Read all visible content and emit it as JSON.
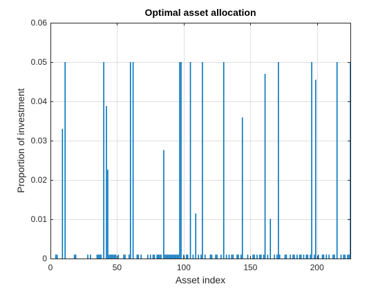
{
  "chart_data": {
    "type": "bar",
    "title": "Optimal asset allocation",
    "xlabel": "Asset index",
    "ylabel": "Proportion of investment",
    "xlim": [
      0,
      225
    ],
    "ylim": [
      0,
      0.06
    ],
    "xticks": [
      0,
      50,
      100,
      150,
      200
    ],
    "xtick_labels": [
      "0",
      "50",
      "100",
      "150",
      "200"
    ],
    "yticks": [
      0,
      0.01,
      0.02,
      0.03,
      0.04,
      0.05,
      0.06
    ],
    "ytick_labels": [
      "0",
      "0.01",
      "0.02",
      "0.03",
      "0.04",
      "0.05",
      "0.06"
    ],
    "grid": true,
    "bar_color": "#0072BD",
    "axis_color": "#262626",
    "grid_color": "#DFDFDF",
    "x": [
      4,
      5,
      9,
      11,
      18,
      19,
      28,
      30,
      35,
      36,
      37,
      38,
      40,
      42,
      43,
      44,
      45,
      46,
      47,
      48,
      49,
      51,
      55,
      56,
      59,
      60,
      62,
      65,
      66,
      68,
      73,
      75,
      77,
      78,
      80,
      81,
      82,
      83,
      85,
      86,
      87,
      88,
      89,
      90,
      91,
      92,
      93,
      94,
      95,
      96,
      97,
      98,
      100,
      102,
      103,
      105,
      107,
      109,
      111,
      113,
      114,
      116,
      120,
      121,
      124,
      125,
      128,
      130,
      132,
      134,
      136,
      137,
      140,
      141,
      143,
      144,
      148,
      152,
      153,
      155,
      157,
      158,
      160,
      161,
      163,
      165,
      168,
      170,
      171,
      172,
      176,
      177,
      180,
      182,
      183,
      185,
      187,
      188,
      190,
      192,
      193,
      195,
      196,
      198,
      199,
      201,
      204,
      205,
      207,
      209,
      212,
      213,
      215,
      218,
      220,
      221,
      223,
      224,
      225
    ],
    "values": [
      0.001,
      0.001,
      0.033,
      0.05,
      0.001,
      0.001,
      0.001,
      0.001,
      0.001,
      0.001,
      0.001,
      0.001,
      0.05,
      0.0388,
      0.0226,
      0.001,
      0.001,
      0.001,
      0.001,
      0.001,
      0.001,
      0.001,
      0.001,
      0.001,
      0.001,
      0.05,
      0.05,
      0.001,
      0.001,
      0.001,
      0.001,
      0.001,
      0.001,
      0.001,
      0.001,
      0.001,
      0.001,
      0.001,
      0.0276,
      0.001,
      0.001,
      0.001,
      0.001,
      0.001,
      0.001,
      0.001,
      0.001,
      0.001,
      0.001,
      0.001,
      0.05,
      0.05,
      0.001,
      0.001,
      0.001,
      0.05,
      0.001,
      0.0115,
      0.001,
      0.001,
      0.05,
      0.001,
      0.001,
      0.001,
      0.001,
      0.001,
      0.001,
      0.05,
      0.001,
      0.001,
      0.001,
      0.001,
      0.001,
      0.001,
      0.001,
      0.0359,
      0.001,
      0.001,
      0.001,
      0.001,
      0.001,
      0.001,
      0.001,
      0.047,
      0.001,
      0.0101,
      0.001,
      0.001,
      0.05,
      0.001,
      0.001,
      0.001,
      0.001,
      0.001,
      0.001,
      0.001,
      0.001,
      0.001,
      0.001,
      0.001,
      0.001,
      0.001,
      0.05,
      0.001,
      0.0455,
      0.001,
      0.001,
      0.001,
      0.001,
      0.001,
      0.001,
      0.001,
      0.05,
      0.001,
      0.001,
      0.001,
      0.001,
      0.001,
      0.05
    ]
  }
}
